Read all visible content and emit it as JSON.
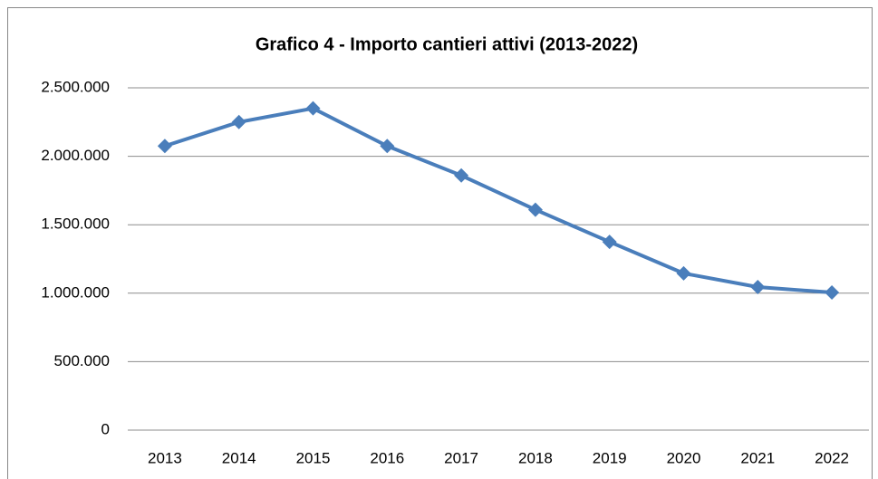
{
  "chart_data": {
    "type": "line",
    "title": "Grafico 4 - Importo cantieri attivi (2013-2022)",
    "categories": [
      "2013",
      "2014",
      "2015",
      "2016",
      "2017",
      "2018",
      "2019",
      "2020",
      "2021",
      "2022"
    ],
    "series": [
      {
        "name": "Importo cantieri attivi",
        "color": "#4a7ebb",
        "values": [
          2075000,
          2250000,
          2350000,
          2075000,
          1860000,
          1610000,
          1375000,
          1145000,
          1045000,
          1005000
        ]
      }
    ],
    "ylim": [
      0,
      2500000
    ],
    "yticks": [
      0,
      {
        "value": 500000,
        "label": "500.000"
      },
      {
        "value": 1000000,
        "label": "1.000.000"
      },
      {
        "value": 1500000,
        "label": "1.500.000"
      },
      {
        "value": 2000000,
        "label": "2.000.000"
      },
      {
        "value": 2500000,
        "label": "2.500.000"
      }
    ],
    "grid": true
  }
}
